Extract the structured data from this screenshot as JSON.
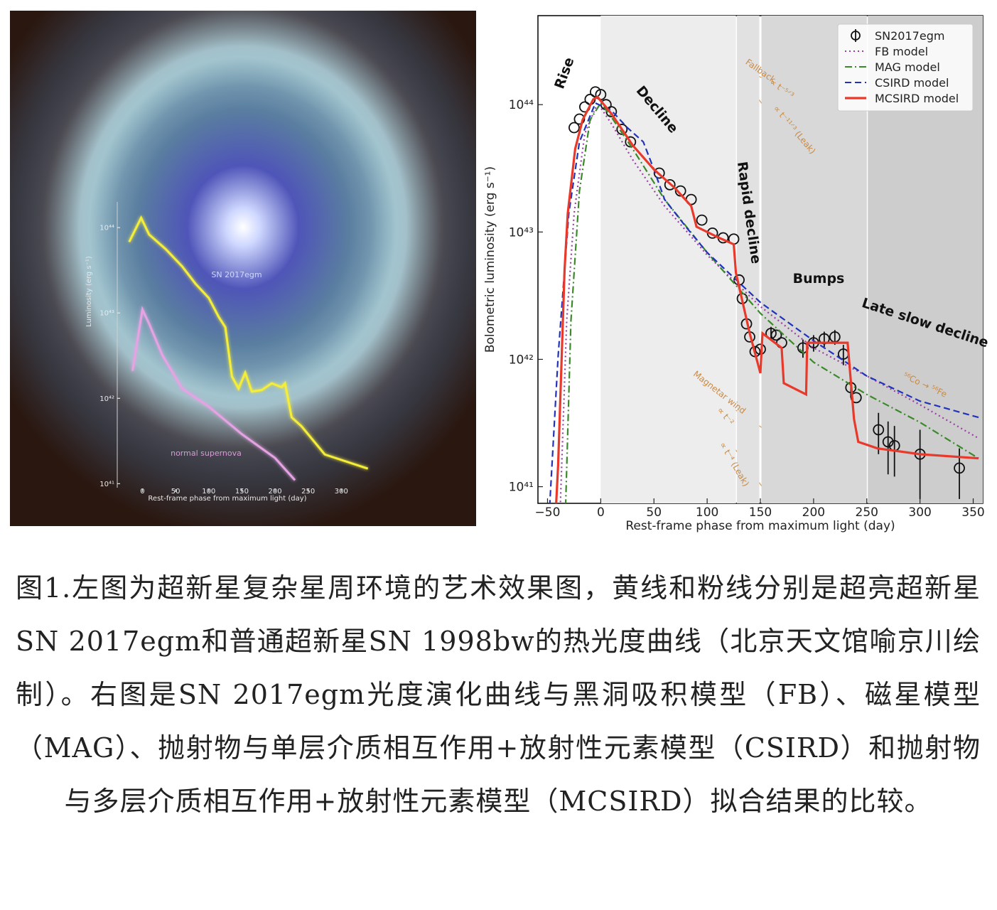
{
  "chart_data": [
    {
      "type": "line",
      "x_label": "Rest-frame phase from maximum light (day)",
      "y_label": "Luminosity (erg s⁻¹)",
      "yscale": "log",
      "xlim": [
        -38,
        350
      ],
      "ylim": [
        8e+40,
        2e+44
      ],
      "xticks": [
        0,
        50,
        100,
        150,
        200,
        250,
        300
      ],
      "yticks": [
        {
          "value": 1e+41,
          "label": "10⁴¹"
        },
        {
          "value": 1e+42,
          "label": "10⁴²"
        },
        {
          "value": 1e+43,
          "label": "10⁴³"
        },
        {
          "value": 1e+44,
          "label": "10⁴⁴"
        }
      ],
      "series": [
        {
          "name": "SN 2017egm",
          "color": "#f4ee3a",
          "linestyle": "solid",
          "x": [
            -20,
            -2,
            10,
            35,
            60,
            80,
            100,
            115,
            125,
            135,
            145,
            155,
            165,
            180,
            195,
            210,
            215,
            225,
            240,
            275,
            340
          ],
          "values": [
            6.8e+43,
            1.3e+44,
            8.3e+43,
            5.6e+43,
            3.5e+43,
            2.2e+43,
            1.5e+43,
            9e+42,
            6.8e+42,
            1.8e+42,
            1.3e+42,
            2e+42,
            1.2e+42,
            1.25e+42,
            1.5e+42,
            1.35e+42,
            1.5e+42,
            6e+41,
            4.7e+41,
            2.2e+41,
            1.5e+41
          ]
        },
        {
          "name": "normal supernova",
          "color": "#e6a3e4",
          "linestyle": "solid",
          "x": [
            -15,
            0,
            10,
            30,
            60,
            100,
            150,
            200,
            230
          ],
          "values": [
            2.1e+42,
            1.1e+43,
            7.5e+42,
            3.2e+42,
            1.3e+42,
            8e+41,
            3.8e+41,
            2e+41,
            1.1e+41
          ]
        }
      ]
    },
    {
      "type": "line",
      "x_label": "Rest-frame phase from maximum light (day)",
      "y_label": "Bolometric luminosity (erg s⁻¹)",
      "yscale": "log",
      "xlim": [
        -59,
        359
      ],
      "ylim": [
        7.4e+40,
        5e+44
      ],
      "xticks": [
        {
          "value": -50,
          "label": "−50"
        },
        0,
        50,
        100,
        150,
        200,
        250,
        300,
        350
      ],
      "yticks": [
        {
          "value": 1e+41,
          "label": "10⁴¹"
        },
        {
          "value": 1e+42,
          "label": "10⁴²"
        },
        {
          "value": 1e+43,
          "label": "10⁴³"
        },
        {
          "value": 1e+44,
          "label": "10⁴⁴"
        }
      ],
      "legend": "upper right",
      "shading": [
        {
          "from": 0,
          "to": 127,
          "color": "#ededed"
        },
        {
          "from": 128,
          "to": 149,
          "color": "#e1e1e1"
        },
        {
          "from": 151,
          "to": 250,
          "color": "#d8d8d8"
        },
        {
          "from": 251,
          "to": 359,
          "color": "#cdcdcd"
        }
      ],
      "phases": [
        "Rise",
        "Decline",
        "Rapid decline",
        "Bumps",
        "Late slow decline"
      ],
      "annotations": [
        "Fallback",
        "∝ t⁻⁵ᐟ³",
        "∝ t⁻¹¹ᐟ³ (Leak)",
        "Magnetar wind",
        "∝ t⁻²",
        "∝ t⁻⁴ (Leak)",
        "⁵⁶Co → ⁵⁶Fe"
      ],
      "series": [
        {
          "name": "SN2017egm",
          "color": "#111111",
          "linestyle": "none",
          "marker": "o",
          "x": [
            -25,
            -20,
            -15,
            -10,
            -5,
            0,
            5,
            10,
            20,
            28,
            55,
            65,
            75,
            85,
            95,
            105,
            115,
            125,
            130,
            133,
            137,
            140,
            145,
            150,
            160,
            165,
            170,
            190,
            200,
            210,
            220,
            228,
            235,
            240,
            261,
            270,
            276,
            300,
            337
          ],
          "values": [
            6.6e+43,
            7.7e+43,
            9.6e+43,
            1.1e+44,
            1.26e+44,
            1.2e+44,
            1e+44,
            8.8e+43,
            6.4e+43,
            5.1e+43,
            2.9e+43,
            2.35e+43,
            2.1e+43,
            1.8e+43,
            1.24e+43,
            9.8e+42,
            9e+42,
            8.8e+42,
            4.2e+42,
            3e+42,
            1.9e+42,
            1.5e+42,
            1.15e+42,
            1.2e+42,
            1.6e+42,
            1.55e+42,
            1.35e+42,
            1.23e+42,
            1.35e+42,
            1.45e+42,
            1.5e+42,
            1.1e+42,
            6e+41,
            5e+41,
            2.8e+41,
            2.25e+41,
            2.1e+41,
            1.8e+41,
            1.4e+41
          ],
          "errors": [
            null,
            null,
            null,
            null,
            null,
            null,
            null,
            null,
            null,
            null,
            null,
            null,
            null,
            null,
            null,
            null,
            null,
            null,
            null,
            null,
            null,
            null,
            null,
            null,
            2e+41,
            null,
            null,
            2e+41,
            2e+41,
            2e+41,
            2e+41,
            2e+41,
            1e+41,
            null,
            1e+41,
            1e+41,
            9e+40,
            1e+41,
            6e+40
          ]
        },
        {
          "name": "FB model",
          "color": "#9b3fa6",
          "linestyle": "dotted",
          "x": [
            -38,
            -32,
            -25,
            -15,
            -3,
            10,
            30,
            60,
            100,
            150,
            200,
            250,
            300,
            355
          ],
          "values": [
            7e+40,
            2e+42,
            1.4e+43,
            5.9e+43,
            1.03e+44,
            7.1e+43,
            3.7e+43,
            1.6e+43,
            6.6e+42,
            2.6e+42,
            1.23e+42,
            7.4e+41,
            4.4e+41,
            2.4e+41
          ]
        },
        {
          "name": "MAG model",
          "color": "#3a8a2a",
          "linestyle": "dashdot",
          "x": [
            -33,
            -28,
            -20,
            -10,
            0,
            10,
            30,
            60,
            100,
            150,
            200,
            250,
            300,
            355
          ],
          "values": [
            7e+40,
            2e+42,
            2.1e+43,
            7.6e+43,
            1.03e+44,
            8e+43,
            4.5e+43,
            1.8e+43,
            6.9e+42,
            2.3e+42,
            9.5e+41,
            5.3e+41,
            3.2e+41,
            1.67e+41
          ]
        },
        {
          "name": "CSIRD model",
          "color": "#2233bb",
          "linestyle": "dashed",
          "x": [
            -48,
            -40,
            -30,
            -20,
            -5,
            10,
            25,
            40,
            50,
            60,
            80,
            100,
            120,
            150,
            200,
            250,
            300,
            355
          ],
          "values": [
            7e+40,
            1.07e+42,
            1.4e+43,
            5.1e+43,
            1.03e+44,
            9e+43,
            6.6e+43,
            5.1e+43,
            3.1e+43,
            1.8e+43,
            1.1e+43,
            6.9e+42,
            4.8e+42,
            2.8e+42,
            1.4e+42,
            7.4e+41,
            4.7e+41,
            3.5e+41
          ]
        },
        {
          "name": "MCSIRD model",
          "color": "#e8392b",
          "linestyle": "solid",
          "x": [
            -42,
            -40,
            -34,
            -31,
            -24,
            -17,
            -7,
            -3,
            10,
            30,
            50,
            70,
            85,
            90,
            110,
            125,
            127,
            140,
            150,
            152,
            170,
            172,
            193,
            194,
            232,
            238,
            242,
            260,
            300,
            355
          ],
          "values": [
            7e+40,
            1.5e+41,
            5e+42,
            1.4e+43,
            4.5e+43,
            7.6e+43,
            1.1e+44,
            1.15e+44,
            8.5e+43,
            4.8e+43,
            3.1e+43,
            2.2e+43,
            1.6e+43,
            1.1e+43,
            9.1e+42,
            8e+42,
            4.8e+42,
            1.6e+42,
            7.8e+41,
            1.6e+42,
            1.23e+42,
            6.5e+41,
            5.3e+41,
            1.35e+42,
            1.35e+42,
            3.4e+41,
            2.25e+41,
            2e+41,
            1.8e+41,
            1.67e+41
          ]
        }
      ]
    }
  ],
  "caption": "图1.左图为超新星复杂星周环境的艺术效果图，黄线和粉线分别是超亮超新星SN 2017egm和普通超新星SN 1998bw的热光度曲线（北京天文馆喻京川绘制）。右图是SN 2017egm光度演化曲线与黑洞吸积模型（FB）、磁星模型（MAG）、抛射物与单层介质相互作用+放射性元素模型（CSIRD）和抛射物与多层介质相互作用+放射性元素模型（MCSIRD）拟合结果的比较。"
}
